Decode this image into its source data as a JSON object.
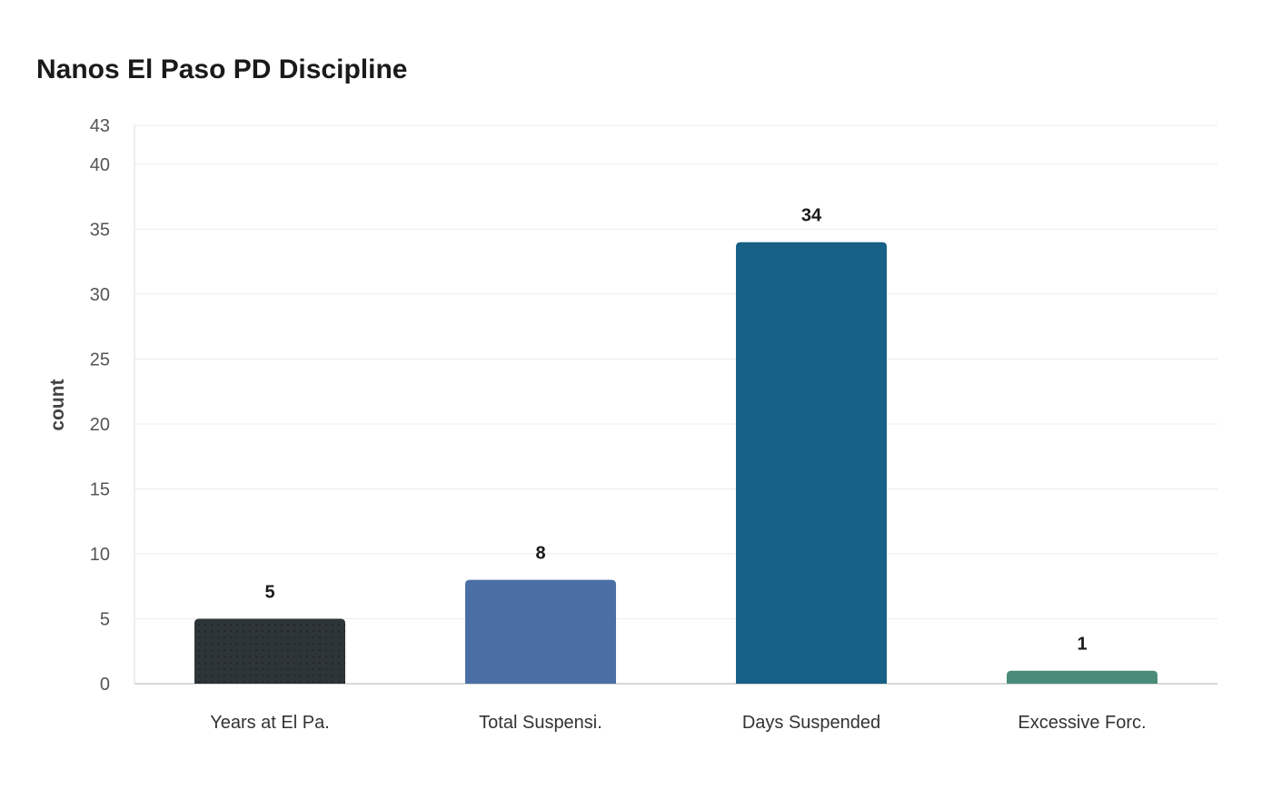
{
  "chart_data": {
    "type": "bar",
    "title": "Nanos El Paso PD Discipline",
    "xlabel": "",
    "ylabel": "count",
    "categories": [
      "Years at El Pa.",
      "Total Suspensi.",
      "Days Suspended",
      "Excessive Forc."
    ],
    "values": [
      5,
      8,
      34,
      1
    ],
    "colors": [
      "#2e3538",
      "#4a6fa5",
      "#176187",
      "#4a8c7a"
    ],
    "ylim": [
      0,
      43
    ],
    "yticks": [
      0,
      5,
      10,
      15,
      20,
      25,
      30,
      35,
      40,
      43
    ],
    "grid": true,
    "data_labels": true
  }
}
